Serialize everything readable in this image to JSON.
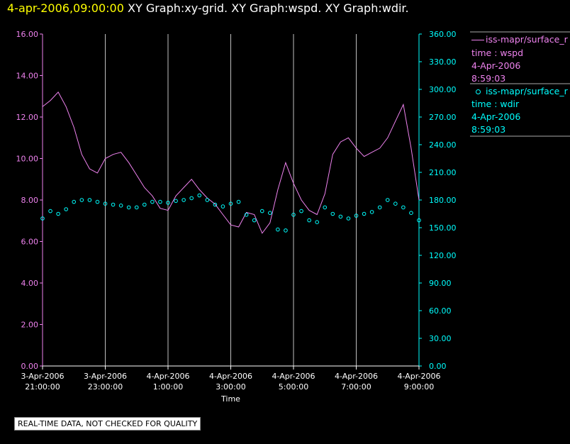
{
  "header": {
    "timestamp": "4-apr-2006,09:00:00",
    "graphs": [
      "XY Graph:xy-grid.",
      "XY Graph:wspd.",
      "XY Graph:wdir."
    ]
  },
  "colors": {
    "wspd": "#ee82ee",
    "wdir": "#00ffff",
    "timestamp": "#ffff00",
    "grid": "#c0c0c0"
  },
  "legend": [
    {
      "name": "iss-mapr/surface_r",
      "sub": "time : wspd",
      "date": "4-Apr-2006",
      "time": "8:59:03",
      "marker": "line"
    },
    {
      "name": "iss-mapr/surface_r",
      "sub": "time : wdir",
      "date": "4-Apr-2006",
      "time": "8:59:03",
      "marker": "circle"
    }
  ],
  "notice": "REAL-TIME DATA, NOT CHECKED FOR QUALITY",
  "chart_data": {
    "type": "line",
    "xlabel": "Time",
    "x_ticks": [
      {
        "hours": 21,
        "l1": "3-Apr-2006",
        "l2": "21:00:00"
      },
      {
        "hours": 23,
        "l1": "3-Apr-2006",
        "l2": "23:00:00"
      },
      {
        "hours": 25,
        "l1": "4-Apr-2006",
        "l2": "1:00:00"
      },
      {
        "hours": 27,
        "l1": "4-Apr-2006",
        "l2": "3:00:00"
      },
      {
        "hours": 29,
        "l1": "4-Apr-2006",
        "l2": "5:00:00"
      },
      {
        "hours": 31,
        "l1": "4-Apr-2006",
        "l2": "7:00:00"
      },
      {
        "hours": 33,
        "l1": "4-Apr-2006",
        "l2": "9:00:00"
      }
    ],
    "x_range_hours": [
      21,
      33
    ],
    "left_axis": {
      "series": "wspd",
      "ylim": [
        0,
        16
      ],
      "ticks": [
        "0.00",
        "2.00",
        "4.00",
        "6.00",
        "8.00",
        "10.00",
        "12.00",
        "14.00",
        "16.00"
      ]
    },
    "right_axis": {
      "series": "wdir",
      "ylim": [
        0,
        360
      ],
      "ticks": [
        "0.00",
        "30.00",
        "60.00",
        "90.00",
        "120.00",
        "150.00",
        "180.00",
        "210.00",
        "240.00",
        "270.00",
        "300.00",
        "330.00",
        "360.00"
      ]
    },
    "series": [
      {
        "name": "iss-mapr/surface_r time : wspd",
        "style": "line",
        "x_hours": [
          21.0,
          21.25,
          21.5,
          21.75,
          22.0,
          22.25,
          22.5,
          22.75,
          23.0,
          23.25,
          23.5,
          23.75,
          24.0,
          24.25,
          24.5,
          24.75,
          25.0,
          25.25,
          25.5,
          25.75,
          26.0,
          26.25,
          26.5,
          26.75,
          27.0,
          27.25,
          27.5,
          27.75,
          28.0,
          28.25,
          28.5,
          28.75,
          29.0,
          29.25,
          29.5,
          29.75,
          30.0,
          30.25,
          30.5,
          30.75,
          31.0,
          31.25,
          31.5,
          31.75,
          32.0,
          32.25,
          32.5,
          32.75,
          33.0
        ],
        "values": [
          12.5,
          12.8,
          13.2,
          12.5,
          11.5,
          10.2,
          9.5,
          9.3,
          10.0,
          10.2,
          10.3,
          9.8,
          9.2,
          8.6,
          8.2,
          7.6,
          7.5,
          8.2,
          8.6,
          9.0,
          8.5,
          8.1,
          7.8,
          7.3,
          6.8,
          6.7,
          7.4,
          7.3,
          6.4,
          6.9,
          8.5,
          9.8,
          8.8,
          8.0,
          7.5,
          7.3,
          8.3,
          10.2,
          10.8,
          11.0,
          10.5,
          10.1,
          10.3,
          10.5,
          11.0,
          11.8,
          12.6,
          10.5,
          8.0
        ]
      },
      {
        "name": "iss-mapr/surface_r time : wdir",
        "style": "circle",
        "x_hours": [
          21.0,
          21.25,
          21.5,
          21.75,
          22.0,
          22.25,
          22.5,
          22.75,
          23.0,
          23.25,
          23.5,
          23.75,
          24.0,
          24.25,
          24.5,
          24.75,
          25.0,
          25.25,
          25.5,
          25.75,
          26.0,
          26.25,
          26.5,
          26.75,
          27.0,
          27.25,
          27.5,
          27.75,
          28.0,
          28.25,
          28.5,
          28.75,
          29.0,
          29.25,
          29.5,
          29.75,
          30.0,
          30.25,
          30.5,
          30.75,
          31.0,
          31.25,
          31.5,
          31.75,
          32.0,
          32.25,
          32.5,
          32.75,
          33.0
        ],
        "values": [
          160,
          168,
          165,
          170,
          178,
          180,
          180,
          178,
          176,
          175,
          174,
          172,
          172,
          175,
          178,
          178,
          177,
          179,
          180,
          182,
          185,
          180,
          175,
          173,
          176,
          178,
          164,
          158,
          168,
          166,
          148,
          147,
          164,
          168,
          158,
          156,
          172,
          165,
          162,
          160,
          163,
          165,
          167,
          172,
          180,
          176,
          172,
          166,
          158
        ]
      }
    ]
  }
}
